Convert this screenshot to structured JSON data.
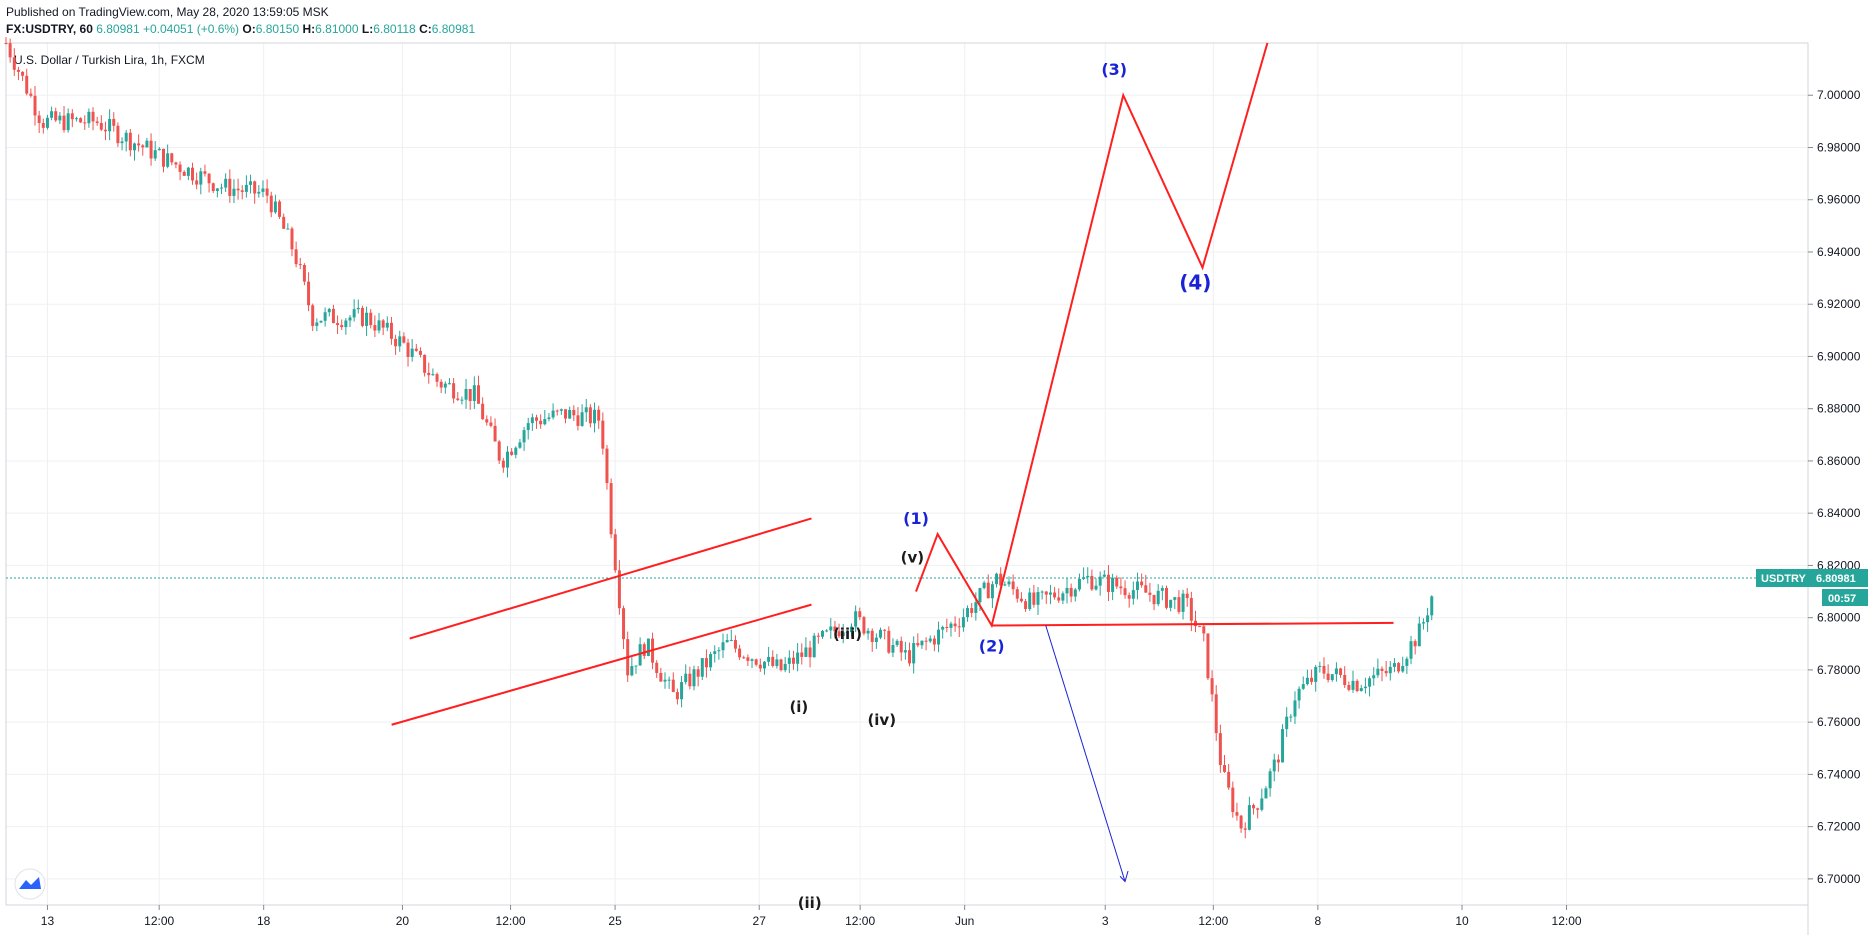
{
  "header": {
    "published": "Published on TradingView.com, May 28, 2020 13:59:05 MSK",
    "symbol": "FX:USDTRY, 60",
    "last": "6.80981",
    "change": "+0.04051 (+0.6%)",
    "o_label": "O:",
    "o_value": "6.80150",
    "h_label": "H:",
    "h_value": "6.81000",
    "l_label": "L:",
    "l_value": "6.80118",
    "c_label": "C:",
    "c_value": "6.80981"
  },
  "chart_title": "U.S. Dollar / Turkish Lira, 1h, FXCM",
  "price_tag": {
    "symbol": "USDTRY",
    "price": "6.80981",
    "countdown": "00:57"
  },
  "colors": {
    "up": "#26a69a",
    "down": "#ef5350",
    "annotation": "#ff1f1f",
    "wave_blue": "#1a23d6",
    "grid": "#eef0f3",
    "last_line": "#26a69a"
  },
  "chart_data": {
    "type": "candlestick",
    "ylim": [
      6.69,
      7.02
    ],
    "y_ticks": [
      "6.70000",
      "6.72000",
      "6.74000",
      "6.76000",
      "6.78000",
      "6.80000",
      "6.82000",
      "6.84000",
      "6.86000",
      "6.88000",
      "6.90000",
      "6.92000",
      "6.94000",
      "6.96000",
      "6.98000",
      "7.00000"
    ],
    "x_ticks": [
      "13",
      "12:00",
      "18",
      "20",
      "12:00",
      "25",
      "27",
      "12:00",
      "Jun",
      "3",
      "12:00",
      "8",
      "10",
      "12:00"
    ],
    "price_path": [
      [
        0,
        7.02
      ],
      [
        0.02,
        6.99
      ],
      [
        0.05,
        6.99
      ],
      [
        0.09,
        6.975
      ],
      [
        0.12,
        6.965
      ],
      [
        0.145,
        6.962
      ],
      [
        0.16,
        6.94
      ],
      [
        0.17,
        6.915
      ],
      [
        0.2,
        6.915
      ],
      [
        0.22,
        6.905
      ],
      [
        0.24,
        6.89
      ],
      [
        0.26,
        6.885
      ],
      [
        0.275,
        6.86
      ],
      [
        0.29,
        6.875
      ],
      [
        0.31,
        6.878
      ],
      [
        0.33,
        6.876
      ],
      [
        0.335,
        6.84
      ],
      [
        0.345,
        6.78
      ],
      [
        0.355,
        6.79
      ],
      [
        0.37,
        6.77
      ],
      [
        0.4,
        6.79
      ],
      [
        0.43,
        6.78
      ],
      [
        0.47,
        6.8
      ],
      [
        0.5,
        6.785
      ],
      [
        0.53,
        6.8
      ],
      [
        0.55,
        6.815
      ],
      [
        0.57,
        6.805
      ],
      [
        0.6,
        6.815
      ],
      [
        0.63,
        6.81
      ],
      [
        0.655,
        6.805
      ],
      [
        0.665,
        6.79
      ],
      [
        0.675,
        6.74
      ],
      [
        0.685,
        6.72
      ],
      [
        0.695,
        6.73
      ],
      [
        0.705,
        6.745
      ],
      [
        0.715,
        6.77
      ],
      [
        0.73,
        6.78
      ],
      [
        0.75,
        6.775
      ],
      [
        0.77,
        6.78
      ],
      [
        0.785,
        6.795
      ],
      [
        0.792,
        6.81
      ]
    ],
    "waves": [
      {
        "label": "(1)",
        "price": 6.832
      },
      {
        "label": "(2)",
        "price": 6.797
      },
      {
        "label": "(3)",
        "price": 7.0
      },
      {
        "label": "(4)",
        "price": 6.934
      },
      {
        "label": "(i)",
        "price": 6.757
      },
      {
        "label": "(ii)",
        "price": 6.698
      },
      {
        "label": "(iii)",
        "price": 6.788
      },
      {
        "label": "(iv)",
        "price": 6.767
      },
      {
        "label": "(v)",
        "price": 6.815
      }
    ]
  }
}
